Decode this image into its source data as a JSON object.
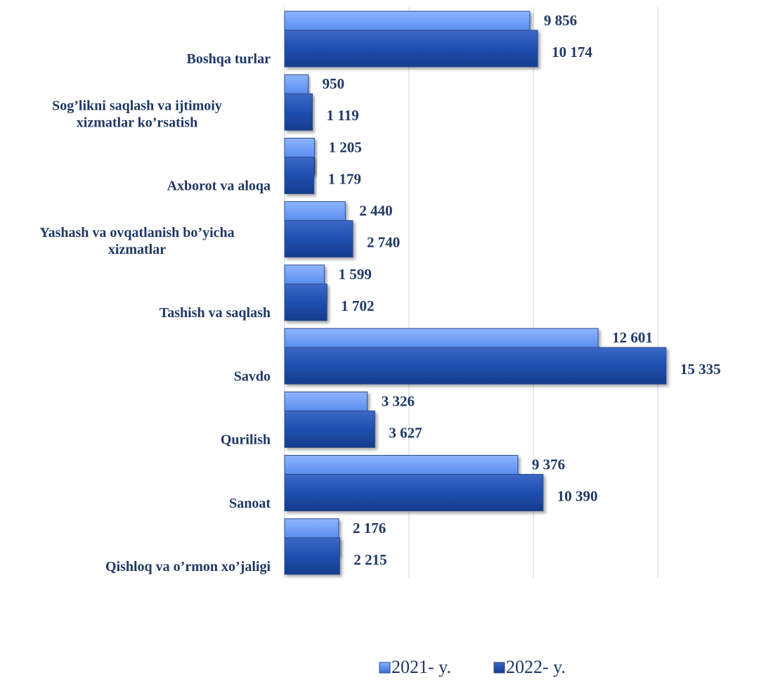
{
  "chart_data": {
    "type": "bar",
    "orientation": "horizontal",
    "categories": [
      "Boshqa turlar",
      "Sog’likni saqlash va ijtimoiy xizmatlar ko’rsatish",
      "Axborot va aloqa",
      "Yashash va ovqatlanish bo’yicha xizmatlar",
      "Tashish va saqlash",
      "Savdo",
      "Qurilish",
      "Sanoat",
      "Qishloq va o’rmon xo’jaligi"
    ],
    "category_lines": [
      [
        "Boshqa turlar"
      ],
      [
        "Sog’likni saqlash va ijtimoiy",
        "xizmatlar ko’rsatish"
      ],
      [
        "Axborot va aloqa"
      ],
      [
        "Yashash va ovqatlanish bo’yicha",
        "xizmatlar"
      ],
      [
        "Tashish va saqlash"
      ],
      [
        "Savdo"
      ],
      [
        "Qurilish"
      ],
      [
        "Sanoat"
      ],
      [
        "Qishloq va o’rmon xo’jaligi"
      ]
    ],
    "series": [
      {
        "name": "2021- y.",
        "color": "#5b8ff0",
        "values": [
          9856,
          950,
          1205,
          2440,
          1599,
          12601,
          3326,
          9376,
          2176
        ],
        "labels": [
          "9 856",
          "950",
          "1 205",
          "2 440",
          "1 599",
          "12 601",
          "3 326",
          "9 376",
          "2 176"
        ]
      },
      {
        "name": "2022- y.",
        "color": "#1f4fb0",
        "values": [
          10174,
          1119,
          1179,
          2740,
          1702,
          15335,
          3627,
          10390,
          2215
        ],
        "labels": [
          "10 174",
          "1 119",
          "1 179",
          "2 740",
          "1 702",
          "15 335",
          "3 627",
          "10 390",
          "2 215"
        ]
      }
    ],
    "xlim": [
      0,
      20000
    ],
    "grid": true,
    "legend_position": "bottom-center"
  }
}
